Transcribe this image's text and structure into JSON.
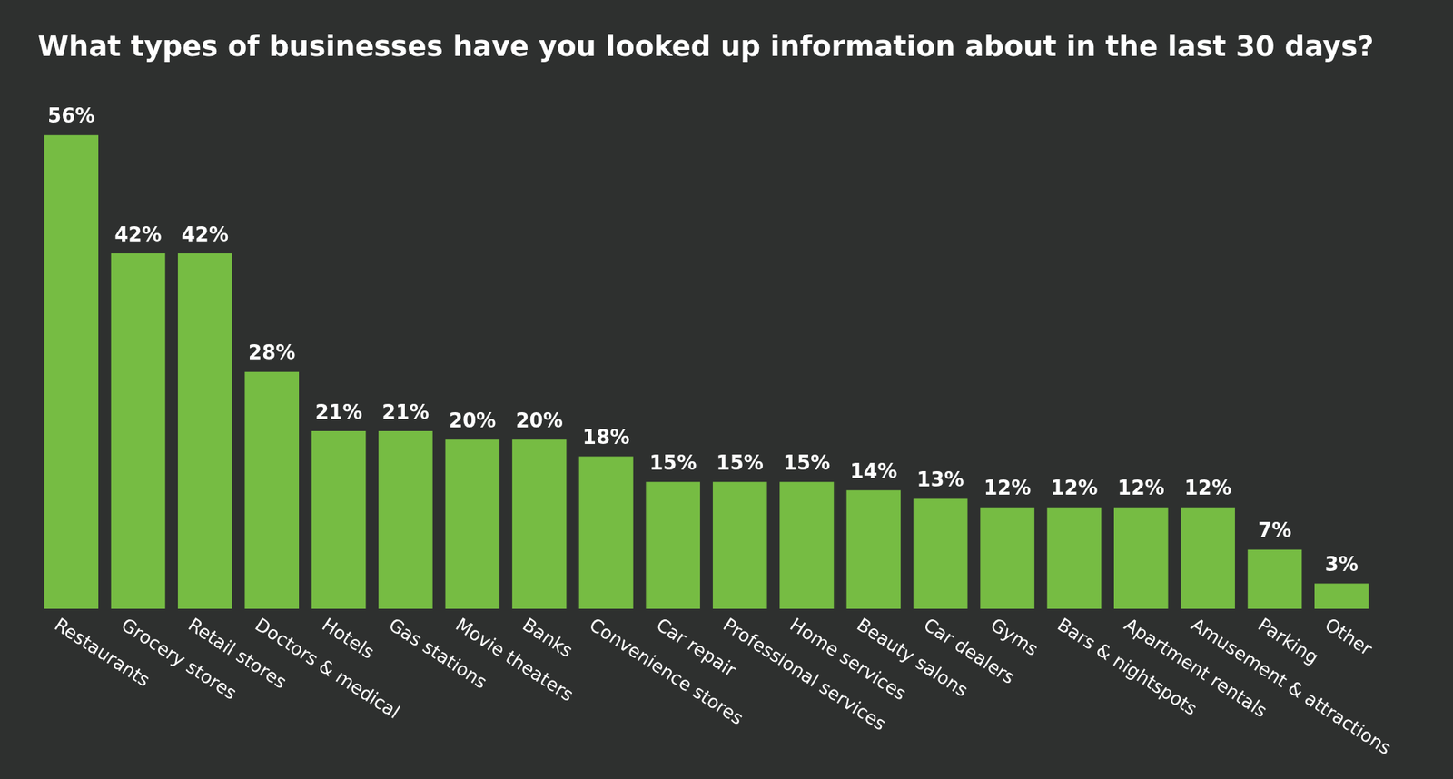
{
  "chart_data": {
    "type": "bar",
    "title": "What types of businesses have you looked up information about in the last 30 days?",
    "categories": [
      "Restaurants",
      "Grocery stores",
      "Retail stores",
      "Doctors & medical",
      "Hotels",
      "Gas stations",
      "Movie theaters",
      "Banks",
      "Convenience stores",
      "Car repair",
      "Professional services",
      "Home services",
      "Beauty salons",
      "Car dealers",
      "Gyms",
      "Bars & nightspots",
      "Apartment rentals",
      "Amusement & attractions",
      "Parking",
      "Other"
    ],
    "values": [
      56,
      42,
      42,
      28,
      21,
      21,
      20,
      20,
      18,
      15,
      15,
      15,
      14,
      13,
      12,
      12,
      12,
      12,
      7,
      3
    ],
    "value_labels": [
      "56%",
      "42%",
      "42%",
      "28%",
      "21%",
      "21%",
      "20%",
      "20%",
      "18%",
      "15%",
      "15%",
      "15%",
      "14%",
      "13%",
      "12%",
      "12%",
      "12%",
      "12%",
      "7%",
      "3%"
    ],
    "color": "#76bc43",
    "ylim": [
      0,
      56
    ],
    "grid": false,
    "data_labels": true,
    "tick_labels": "x"
  }
}
